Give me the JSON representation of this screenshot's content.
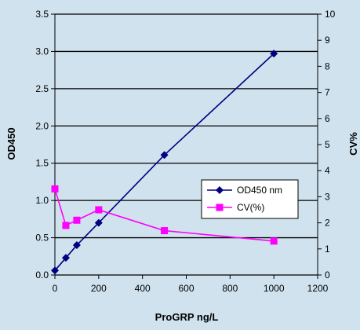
{
  "chart_data": {
    "type": "line",
    "title": "",
    "xlabel": "ProGRP ng/L",
    "ylabel": "OD450",
    "y2label": "CV%",
    "xlim": [
      0,
      1200
    ],
    "ylim": [
      0,
      3.5
    ],
    "y2lim": [
      0,
      10
    ],
    "xticks": [
      "0",
      "200",
      "400",
      "600",
      "800",
      "1000",
      "1200"
    ],
    "yticks": [
      "0.0",
      "0.5",
      "1.0",
      "1.5",
      "2.0",
      "2.5",
      "3.0",
      "3.5"
    ],
    "y2ticks": [
      "0",
      "1",
      "2",
      "3",
      "4",
      "5",
      "6",
      "7",
      "8",
      "9",
      "10"
    ],
    "grid": "horizontal",
    "legend_position": "right",
    "series": [
      {
        "name": "OD450 nm",
        "axis": "left",
        "marker": "diamond",
        "color": "#000080",
        "x": [
          0,
          50,
          100,
          200,
          500,
          1000
        ],
        "y": [
          0.06,
          0.23,
          0.4,
          0.7,
          1.61,
          2.97
        ]
      },
      {
        "name": "CV(%)",
        "axis": "right",
        "marker": "square",
        "color": "#ff00ff",
        "x": [
          0,
          50,
          100,
          200,
          500,
          1000
        ],
        "y": [
          3.3,
          1.9,
          2.1,
          2.5,
          1.7,
          1.3
        ]
      }
    ]
  }
}
